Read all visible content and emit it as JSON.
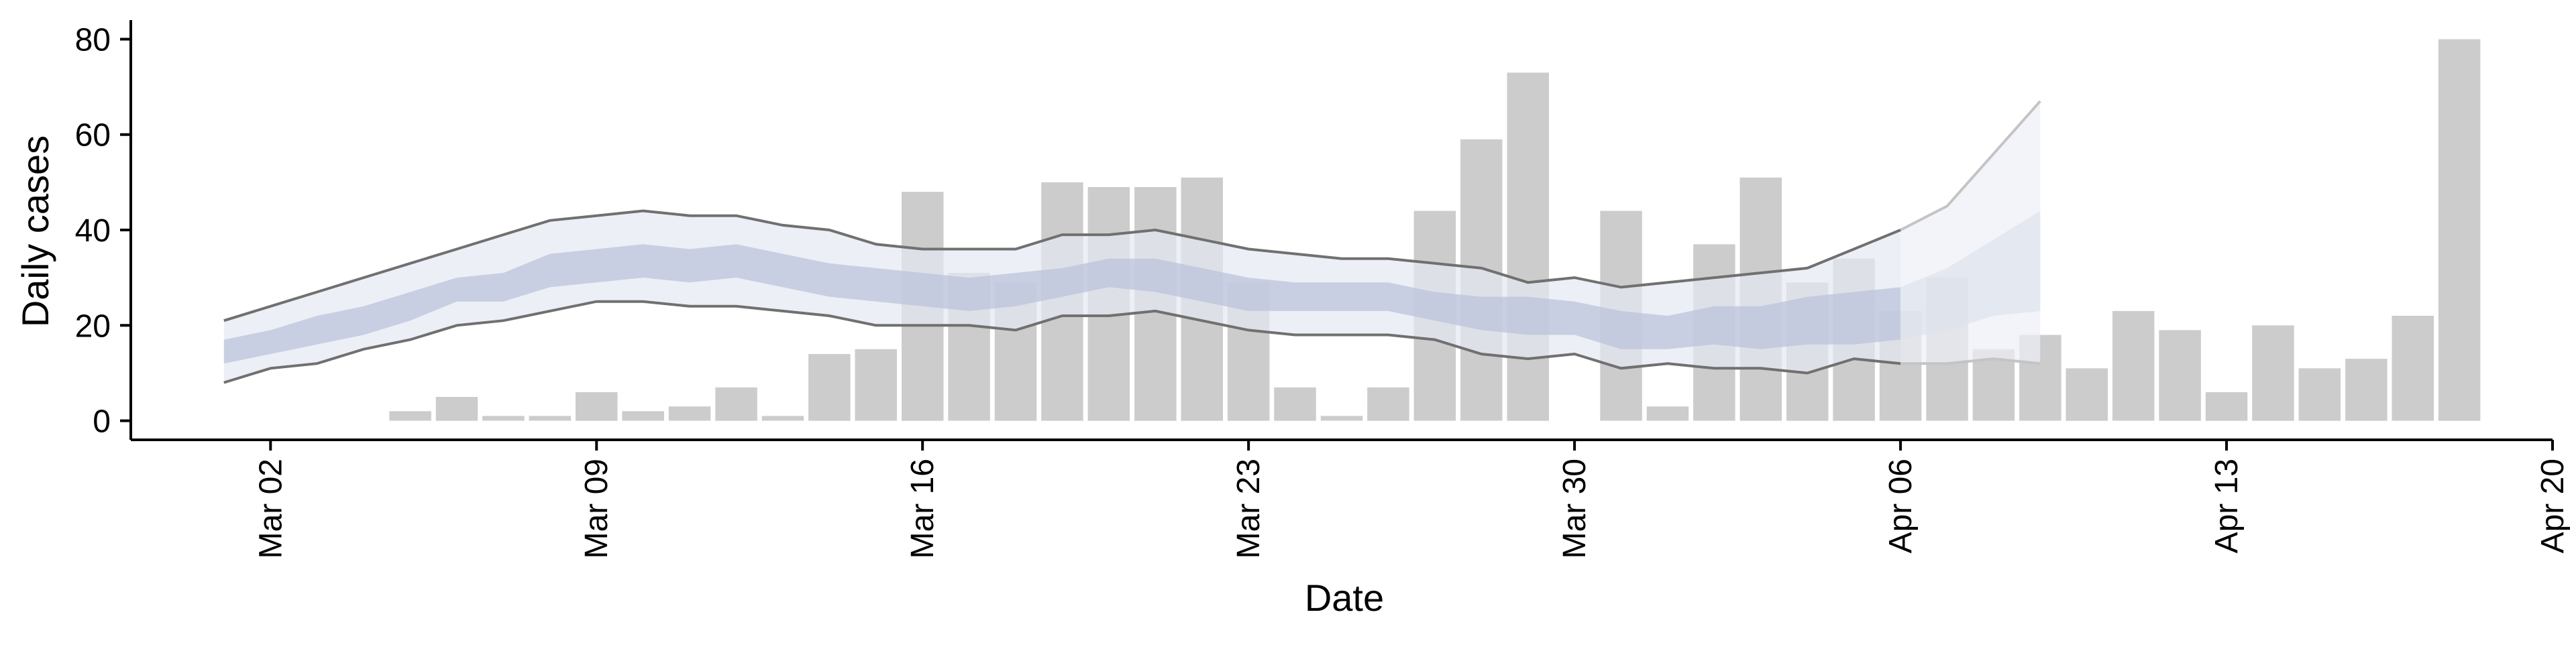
{
  "chart_data": {
    "type": "bar",
    "title": "",
    "xlabel": "Date",
    "ylabel": "Daily cases",
    "xlim": [
      "2020-02-28",
      "2020-04-20"
    ],
    "ylim": [
      -4,
      84
    ],
    "grid": false,
    "legend": "none",
    "x_ticks": [
      "Mar 02",
      "Mar 09",
      "Mar 16",
      "Mar 23",
      "Mar 30",
      "Apr 06",
      "Apr 13",
      "Apr 20"
    ],
    "x_tick_dates": [
      "2020-03-02",
      "2020-03-09",
      "2020-03-16",
      "2020-03-23",
      "2020-03-30",
      "2020-04-06",
      "2020-04-13",
      "2020-04-20"
    ],
    "y_ticks": [
      0,
      20,
      40,
      60,
      80
    ],
    "colors": {
      "bars": "#cccccc",
      "outer_band": "#e6e8f2",
      "inner_band": "#bcc4db",
      "bound_lines": "#707070",
      "forecast_band": "#eef0f6",
      "forecast_inner": "#dde2ed",
      "forecast_lines": "#c4c4c4",
      "axis": "#000000"
    },
    "bars": {
      "dates": [
        "2020-03-05",
        "2020-03-06",
        "2020-03-07",
        "2020-03-08",
        "2020-03-09",
        "2020-03-10",
        "2020-03-11",
        "2020-03-12",
        "2020-03-13",
        "2020-03-14",
        "2020-03-15",
        "2020-03-16",
        "2020-03-17",
        "2020-03-18",
        "2020-03-19",
        "2020-03-20",
        "2020-03-21",
        "2020-03-22",
        "2020-03-23",
        "2020-03-24",
        "2020-03-25",
        "2020-03-26",
        "2020-03-27",
        "2020-03-28",
        "2020-03-29",
        "2020-03-30",
        "2020-03-31",
        "2020-04-01",
        "2020-04-02",
        "2020-04-03",
        "2020-04-04",
        "2020-04-05",
        "2020-04-06",
        "2020-04-07",
        "2020-04-08",
        "2020-04-09",
        "2020-04-10",
        "2020-04-11",
        "2020-04-12",
        "2020-04-13",
        "2020-04-14",
        "2020-04-15",
        "2020-04-16",
        "2020-04-17",
        "2020-04-18"
      ],
      "values": [
        2,
        5,
        1,
        1,
        6,
        2,
        3,
        7,
        1,
        14,
        15,
        48,
        31,
        29,
        50,
        49,
        49,
        51,
        29,
        7,
        1,
        7,
        44,
        59,
        73,
        0,
        44,
        3,
        37,
        51,
        29,
        34,
        23,
        30,
        15,
        18,
        11,
        23,
        19,
        6,
        20,
        11,
        13,
        22,
        80
      ]
    },
    "estimate": {
      "dates": [
        "2020-03-01",
        "2020-03-02",
        "2020-03-03",
        "2020-03-04",
        "2020-03-05",
        "2020-03-06",
        "2020-03-07",
        "2020-03-08",
        "2020-03-09",
        "2020-03-10",
        "2020-03-11",
        "2020-03-12",
        "2020-03-13",
        "2020-03-14",
        "2020-03-15",
        "2020-03-16",
        "2020-03-17",
        "2020-03-18",
        "2020-03-19",
        "2020-03-20",
        "2020-03-21",
        "2020-03-22",
        "2020-03-23",
        "2020-03-24",
        "2020-03-25",
        "2020-03-26",
        "2020-03-27",
        "2020-03-28",
        "2020-03-29",
        "2020-03-30",
        "2020-03-31",
        "2020-04-01",
        "2020-04-02",
        "2020-04-03",
        "2020-04-04",
        "2020-04-05",
        "2020-04-06"
      ],
      "upper": [
        21,
        24,
        27,
        30,
        33,
        36,
        39,
        42,
        43,
        44,
        43,
        43,
        41,
        40,
        37,
        36,
        36,
        36,
        39,
        39,
        40,
        38,
        36,
        35,
        34,
        34,
        33,
        32,
        29,
        30,
        28,
        29,
        30,
        31,
        32,
        36,
        40
      ],
      "lower": [
        8,
        11,
        12,
        15,
        17,
        20,
        21,
        23,
        25,
        25,
        24,
        24,
        23,
        22,
        20,
        20,
        20,
        19,
        22,
        22,
        23,
        21,
        19,
        18,
        18,
        18,
        17,
        14,
        13,
        14,
        11,
        12,
        11,
        11,
        10,
        13,
        12
      ],
      "inner_upper": [
        17,
        19,
        22,
        24,
        27,
        30,
        31,
        35,
        36,
        37,
        36,
        37,
        35,
        33,
        32,
        31,
        30,
        31,
        32,
        34,
        34,
        32,
        30,
        29,
        29,
        29,
        27,
        26,
        26,
        25,
        23,
        22,
        24,
        24,
        26,
        27,
        28
      ],
      "inner_lower": [
        12,
        14,
        16,
        18,
        21,
        25,
        25,
        28,
        29,
        30,
        29,
        30,
        28,
        26,
        25,
        24,
        23,
        24,
        26,
        28,
        27,
        25,
        23,
        23,
        23,
        23,
        21,
        19,
        18,
        18,
        15,
        15,
        16,
        15,
        16,
        16,
        17
      ]
    },
    "forecast": {
      "dates": [
        "2020-04-06",
        "2020-04-07",
        "2020-04-08",
        "2020-04-09"
      ],
      "upper": [
        40,
        45,
        56,
        67
      ],
      "lower": [
        12,
        12,
        13,
        12
      ],
      "inner_upper": [
        28,
        32,
        38,
        44
      ],
      "inner_lower": [
        17,
        19,
        22,
        23
      ]
    }
  }
}
